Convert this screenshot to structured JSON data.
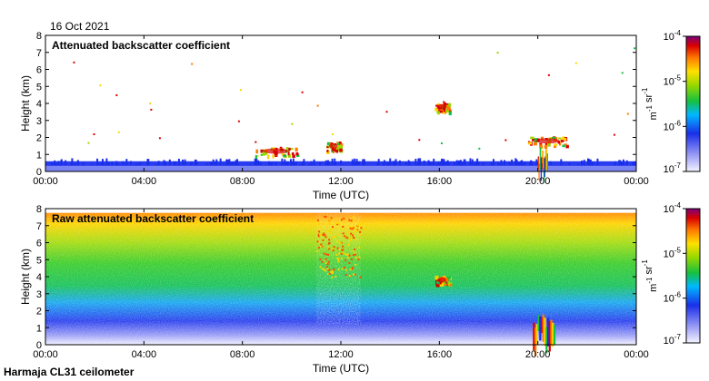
{
  "date": "16 Oct 2021",
  "footer": "Harmaja CL31 ceilometer",
  "colors": {
    "axis": "#000000",
    "low_signal": "#1a2fe8",
    "mid_signal": "#19c84a",
    "high_signal": "#ffd400",
    "peak_signal": "#d90000"
  },
  "chart_data": [
    {
      "type": "heatmap",
      "title": "Attenuated backscatter coefficient",
      "xlabel": "Time (UTC)",
      "ylabel": "Height (km)",
      "xlim": [
        0,
        24
      ],
      "ylim": [
        0,
        8
      ],
      "x_tick_labels": [
        "00:00",
        "04:00",
        "08:00",
        "12:00",
        "16:00",
        "20:00",
        "00:00"
      ],
      "y_tick_labels": [
        "0",
        "1",
        "2",
        "3",
        "4",
        "5",
        "6",
        "7",
        "8"
      ],
      "colorbar": {
        "scale": "log",
        "range": [
          1e-07,
          0.0001
        ],
        "tick_labels": [
          "10^-7",
          "10^-6",
          "10^-5",
          "10^-4"
        ],
        "unit_label": "m^-1 sr^-1"
      },
      "features": [
        {
          "name": "near-surface layer",
          "t_start": 0,
          "t_end": 24,
          "h_top": 0.6
        },
        {
          "name": "cloud patch",
          "t_start": 8.5,
          "t_end": 10.2,
          "h_center": 1.2
        },
        {
          "name": "cloud patch",
          "t_start": 11.4,
          "t_end": 12.0,
          "h_center": 1.5
        },
        {
          "name": "cloud patch",
          "t_start": 15.8,
          "t_end": 16.4,
          "h_center": 3.8
        },
        {
          "name": "cloud patch",
          "t_start": 19.6,
          "t_end": 21.2,
          "h_center": 1.8
        },
        {
          "name": "precipitation",
          "t_start": 20.0,
          "t_end": 20.4,
          "h_top": 1.5
        }
      ]
    },
    {
      "type": "heatmap",
      "title": "Raw attenuated backscatter coefficient",
      "xlabel": "Time (UTC)",
      "ylabel": "Height (km)",
      "xlim": [
        0,
        24
      ],
      "ylim": [
        0,
        8
      ],
      "x_tick_labels": [
        "00:00",
        "04:00",
        "08:00",
        "12:00",
        "16:00",
        "20:00",
        "00:00"
      ],
      "y_tick_labels": [
        "0",
        "1",
        "2",
        "3",
        "4",
        "5",
        "6",
        "7",
        "8"
      ],
      "colorbar": {
        "scale": "log",
        "range": [
          1e-07,
          0.0001
        ],
        "tick_labels": [
          "10^-7",
          "10^-6",
          "10^-5",
          "10^-4"
        ],
        "unit_label": "m^-1 sr^-1"
      },
      "features": [
        {
          "name": "high noise band",
          "t_start": 11.0,
          "t_end": 12.8,
          "h_top": 7.7
        },
        {
          "name": "cloud patch",
          "t_start": 15.8,
          "t_end": 16.4,
          "h_center": 3.8
        },
        {
          "name": "precipitation",
          "t_start": 19.8,
          "t_end": 20.7,
          "h_top": 1.8
        }
      ]
    }
  ]
}
